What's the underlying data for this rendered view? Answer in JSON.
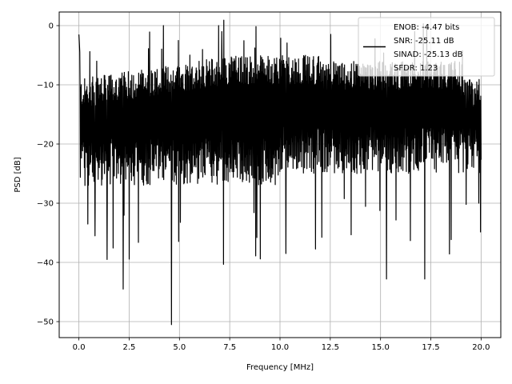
{
  "chart_data": {
    "type": "line",
    "title": "",
    "xlabel": "Frequency [MHz]",
    "ylabel": "PSD [dB]",
    "xlim": [
      -0.98,
      20.98
    ],
    "ylim": [
      -52.7,
      2.3
    ],
    "xticks": [
      0.0,
      2.5,
      5.0,
      7.5,
      10.0,
      12.5,
      15.0,
      17.5,
      20.0
    ],
    "xtick_labels": [
      "0.0",
      "2.5",
      "5.0",
      "7.5",
      "10.0",
      "12.5",
      "15.0",
      "17.5",
      "20.0"
    ],
    "yticks": [
      0,
      -10,
      -20,
      -30,
      -40,
      -50
    ],
    "ytick_labels": [
      "0",
      "−10",
      "−20",
      "−30",
      "−40",
      "−50"
    ],
    "grid": true,
    "legend_placement": "upper-right",
    "series": [
      {
        "color": "#000000",
        "x_range": [
          0.0,
          20.0
        ],
        "num_points": 4096,
        "noise_floor_median_db": -16,
        "notable_points": [
          {
            "x": 0.0,
            "y": -1.5
          },
          {
            "x": 0.3,
            "y": -27
          },
          {
            "x": 0.8,
            "y": -35.5
          },
          {
            "x": 1.4,
            "y": -39.5
          },
          {
            "x": 2.2,
            "y": -44.5
          },
          {
            "x": 4.6,
            "y": -50.5
          },
          {
            "x": 6.95,
            "y": 0
          },
          {
            "x": 7.1,
            "y": -1
          },
          {
            "x": 10.3,
            "y": -38.5
          },
          {
            "x": 15.3,
            "y": -42.8
          },
          {
            "x": 16.7,
            "y": -1
          },
          {
            "x": 17.2,
            "y": -42.8
          },
          {
            "x": 19.8,
            "y": -22
          }
        ]
      }
    ],
    "legend_lines": [
      "ENOB: -4.47 bits",
      "SNR: -25.11 dB",
      "SINAD: -25.13 dB",
      "SFDR: 1.23"
    ],
    "colors": {
      "line": "#000000",
      "grid": "#b0b0b0",
      "axes": "#000000",
      "legend_border": "#cccccc"
    }
  }
}
